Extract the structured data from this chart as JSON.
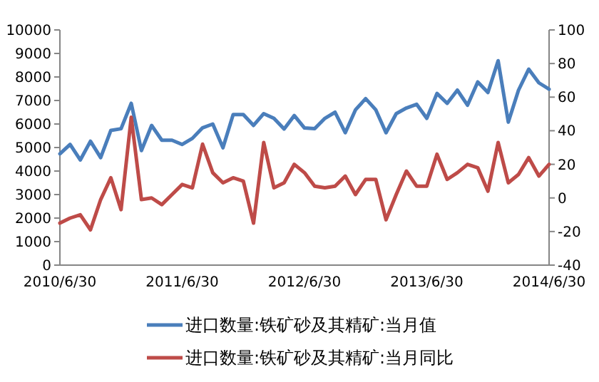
{
  "chart_data": {
    "type": "line",
    "categories": [
      "2010/6/30",
      null,
      null,
      null,
      null,
      null,
      null,
      null,
      null,
      null,
      null,
      null,
      "2011/6/30",
      null,
      null,
      null,
      null,
      null,
      null,
      null,
      null,
      null,
      null,
      null,
      "2012/6/30",
      null,
      null,
      null,
      null,
      null,
      null,
      null,
      null,
      null,
      null,
      null,
      "2013/6/30",
      null,
      null,
      null,
      null,
      null,
      null,
      null,
      null,
      null,
      null,
      null,
      "2014/6/30"
    ],
    "series": [
      {
        "name": "进口数量:铁矿砂及其精矿:当月值",
        "color": "#4a7ebb",
        "values": [
          4730,
          5130,
          4470,
          5270,
          4570,
          5730,
          5800,
          6880,
          4870,
          5940,
          5310,
          5310,
          5130,
          5390,
          5840,
          6000,
          4990,
          6400,
          6400,
          5940,
          6440,
          6240,
          5790,
          6360,
          5830,
          5800,
          6240,
          6500,
          5630,
          6600,
          7080,
          6600,
          5630,
          6440,
          6680,
          6840,
          6240,
          7300,
          6880,
          7440,
          6800,
          7790,
          7340,
          8690,
          6080,
          7440,
          8330,
          7750,
          7480
        ]
      },
      {
        "name": "进口数量:铁矿砂及其精矿:当月同比",
        "color": "#be4b48",
        "axis": "y2",
        "values": [
          -15,
          -12,
          -10,
          -19,
          -1,
          12,
          -7,
          48,
          -1,
          0,
          -4,
          2,
          8,
          6,
          32,
          15,
          9,
          12,
          10,
          -15,
          33,
          6,
          9,
          20,
          15,
          7,
          6,
          7,
          13,
          2,
          11,
          11,
          -13,
          2,
          16,
          7,
          7,
          26,
          11,
          15,
          20,
          18,
          4,
          33,
          9,
          14,
          24,
          13,
          20
        ]
      }
    ],
    "ylim": [
      0,
      10000
    ],
    "yticks": [
      0,
      1000,
      2000,
      3000,
      4000,
      5000,
      6000,
      7000,
      8000,
      9000,
      10000
    ],
    "y2lim": [
      -40,
      100
    ],
    "y2ticks": [
      -40,
      -20,
      0,
      20,
      40,
      60,
      80,
      100
    ],
    "legend": "bottom",
    "marker": "none",
    "line_style": "solid"
  }
}
